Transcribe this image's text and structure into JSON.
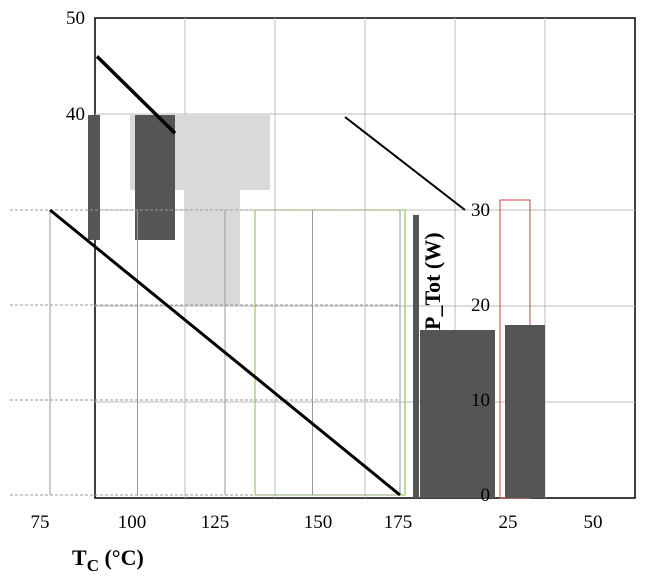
{
  "chart_data": {
    "type": "line",
    "title": "",
    "xlabel": {
      "main": "T",
      "sub": "C",
      "unit": " (°C)"
    },
    "ylabel_inset": "P_Tot (W)",
    "x_ticks": [
      "75",
      "100",
      "125",
      "150",
      "175",
      "25",
      "50"
    ],
    "y_ticks": [
      "0",
      "10",
      "20",
      "30",
      "40",
      "50"
    ],
    "xlim": [
      75,
      175
    ],
    "ylim": [
      0,
      50
    ],
    "grid": true,
    "series": [
      {
        "x": [
          75,
          175
        ],
        "y": [
          30,
          0
        ],
        "color": "#000000"
      },
      {
        "x": [
          75,
          175
        ],
        "y": [
          46,
          10
        ],
        "color": "#000000"
      }
    ]
  }
}
